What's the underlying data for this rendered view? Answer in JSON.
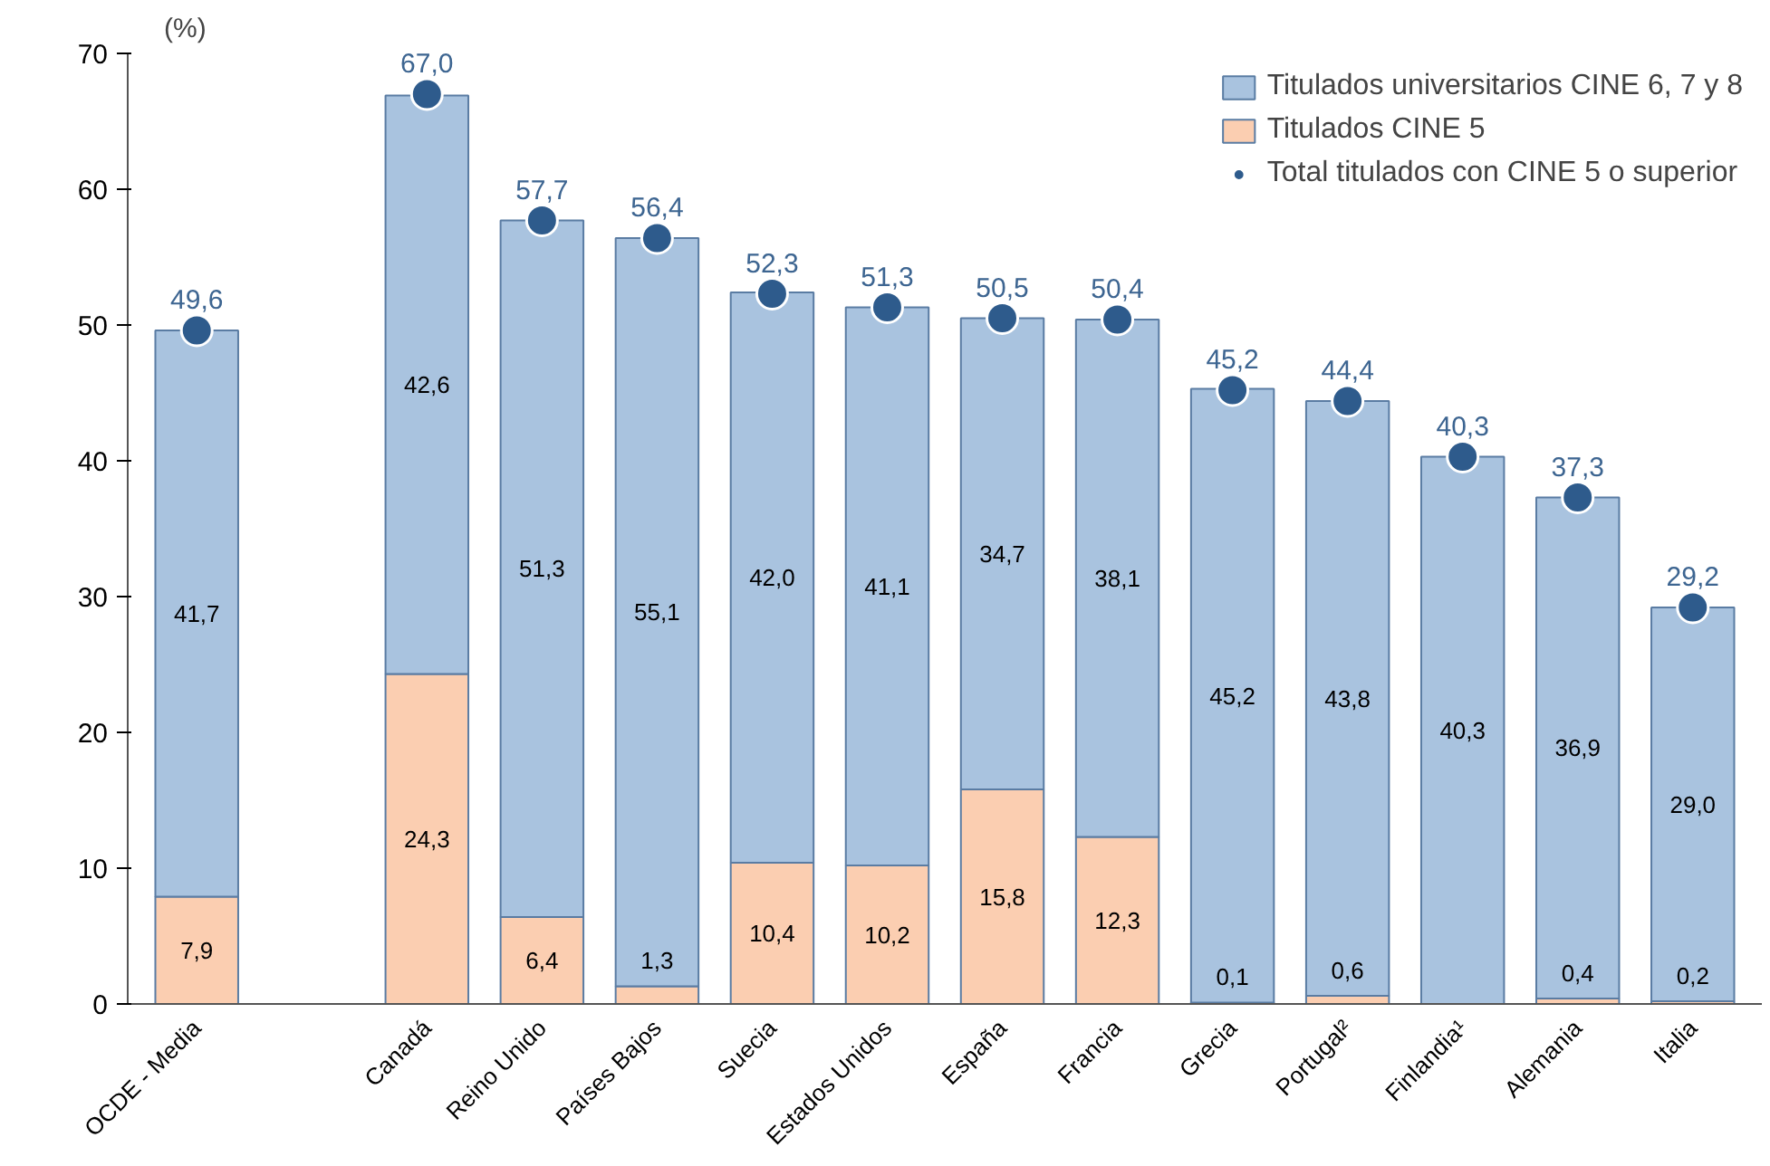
{
  "chart_data": {
    "type": "bar",
    "stacked": true,
    "ylabel": "(%)",
    "categories": [
      "OCDE - Media",
      null,
      "Canadá",
      "Reino Unido",
      "Países Bajos",
      "Suecia",
      "Estados Unidos",
      "España",
      "Francia",
      "Grecia",
      "Portugal²",
      "Finlandia¹",
      "Alemania",
      "Italia"
    ],
    "series": [
      {
        "name": "Titulados CINE 5",
        "color": "#fbceb1",
        "values": [
          7.9,
          null,
          24.3,
          6.4,
          1.3,
          10.4,
          10.2,
          15.8,
          12.3,
          0.1,
          0.6,
          null,
          0.4,
          0.2
        ],
        "value_labels": [
          "7,9",
          null,
          "24,3",
          "6,4",
          "1,3",
          "10,4",
          "10,2",
          "15,8",
          "12,3",
          "0,1",
          "0,6",
          null,
          "0,4",
          "0,2"
        ]
      },
      {
        "name": "Titulados universitarios CINE 6, 7 y 8",
        "color": "#a9c3df",
        "values": [
          41.7,
          null,
          42.6,
          51.3,
          55.1,
          42.0,
          41.1,
          34.7,
          38.1,
          45.2,
          43.8,
          40.3,
          36.9,
          29.0
        ],
        "value_labels": [
          "41,7",
          null,
          "42,6",
          "51,3",
          "55,1",
          "42,0",
          "41,1",
          "34,7",
          "38,1",
          "45,2",
          "43,8",
          "40,3",
          "36,9",
          "29,0"
        ]
      },
      {
        "name": "Total titulados con CINE 5 o superior",
        "type": "scatter",
        "marker": "circle",
        "color": "#2e5b8c",
        "values": [
          49.6,
          null,
          67.0,
          57.7,
          56.4,
          52.3,
          51.3,
          50.5,
          50.4,
          45.2,
          44.4,
          40.3,
          37.3,
          29.2
        ],
        "value_labels": [
          "49,6",
          null,
          "67,0",
          "57,7",
          "56,4",
          "52,3",
          "51,3",
          "50,5",
          "50,4",
          "45,2",
          "44,4",
          "40,3",
          "37,3",
          "29,2"
        ]
      }
    ],
    "ylim": [
      0,
      70
    ],
    "yticks": [
      0,
      10,
      20,
      30,
      40,
      50,
      60,
      70
    ],
    "grid": false,
    "legend": "top right"
  }
}
